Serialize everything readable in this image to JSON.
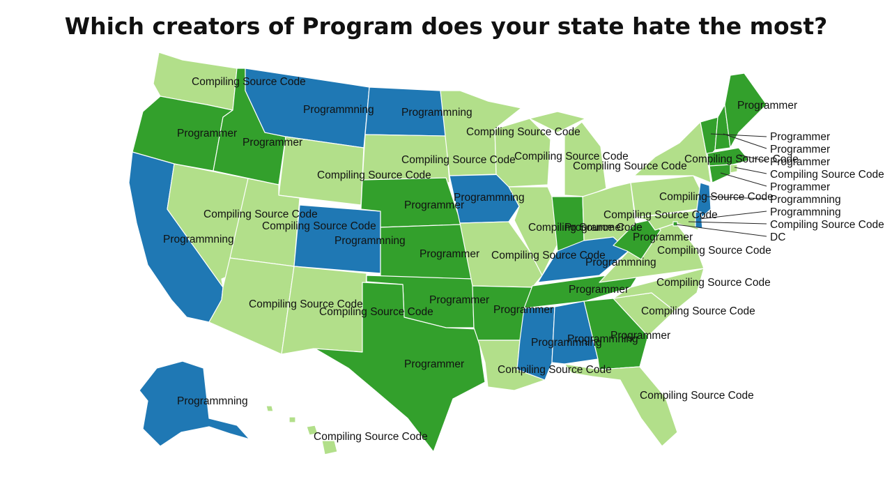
{
  "title": "Which creators of Program does your state hate the most?",
  "colors": {
    "programmer": "#33a02c",
    "compiling": "#b2df8a",
    "programmning": "#1f78b4"
  },
  "states": [
    {
      "name": "washington",
      "label": "Compiling Source Code",
      "category": "compiling"
    },
    {
      "name": "oregon",
      "label": "Programmer",
      "category": "programmer"
    },
    {
      "name": "california",
      "label": "Programmning",
      "category": "programmning"
    },
    {
      "name": "idaho",
      "label": "Programmer",
      "category": "programmer"
    },
    {
      "name": "nevada",
      "label": "Compiling Source Code",
      "category": "compiling"
    },
    {
      "name": "montana",
      "label": "Programmning",
      "category": "programmning"
    },
    {
      "name": "wyoming",
      "label": "Compiling Source Code",
      "category": "compiling"
    },
    {
      "name": "utah",
      "label": "Compiling Source Code",
      "category": "compiling"
    },
    {
      "name": "colorado",
      "label": "Programmning",
      "category": "programmning"
    },
    {
      "name": "arizona",
      "label": "Compiling Source Code",
      "category": "compiling"
    },
    {
      "name": "new-mexico",
      "label": "Compiling Source Code",
      "category": "compiling"
    },
    {
      "name": "north-dakota",
      "label": "Programmning",
      "category": "programmning"
    },
    {
      "name": "south-dakota",
      "label": "Compiling Source Code",
      "category": "compiling"
    },
    {
      "name": "nebraska",
      "label": "Programmer",
      "category": "programmer"
    },
    {
      "name": "kansas",
      "label": "Programmer",
      "category": "programmer"
    },
    {
      "name": "oklahoma",
      "label": "Programmer",
      "category": "programmer"
    },
    {
      "name": "texas",
      "label": "Programmer",
      "category": "programmer"
    },
    {
      "name": "minnesota",
      "label": "Compiling Source Code",
      "category": "compiling"
    },
    {
      "name": "iowa",
      "label": "Programmning",
      "category": "programmning"
    },
    {
      "name": "missouri",
      "label": "Compiling Source Code",
      "category": "compiling"
    },
    {
      "name": "arkansas",
      "label": "Programmer",
      "category": "programmer"
    },
    {
      "name": "louisiana",
      "label": "Compiling Source Code",
      "category": "compiling"
    },
    {
      "name": "wisconsin",
      "label": "Compiling Source Code",
      "category": "compiling"
    },
    {
      "name": "illinois",
      "label": "Compiling Source Code",
      "category": "compiling"
    },
    {
      "name": "michigan",
      "label": "Compiling Source Code",
      "category": "compiling"
    },
    {
      "name": "indiana",
      "label": "Programmer",
      "category": "programmer"
    },
    {
      "name": "ohio",
      "label": "Compiling Source Code",
      "category": "compiling"
    },
    {
      "name": "kentucky",
      "label": "Programmning",
      "category": "programmning"
    },
    {
      "name": "tennessee",
      "label": "Programmer",
      "category": "programmer"
    },
    {
      "name": "mississippi",
      "label": "Programmning",
      "category": "programmning"
    },
    {
      "name": "alabama",
      "label": "Programmning",
      "category": "programmning"
    },
    {
      "name": "georgia",
      "label": "Programmer",
      "category": "programmer"
    },
    {
      "name": "florida",
      "label": "Compiling Source Code",
      "category": "compiling"
    },
    {
      "name": "south-carolina",
      "label": "Compiling Source Code",
      "category": "compiling"
    },
    {
      "name": "north-carolina",
      "label": "Compiling Source Code",
      "category": "compiling"
    },
    {
      "name": "virginia",
      "label": "Compiling Source Code",
      "category": "compiling"
    },
    {
      "name": "west-virginia",
      "label": "Programmer",
      "category": "programmer"
    },
    {
      "name": "pennsylvania",
      "label": "Compiling Source Code",
      "category": "compiling"
    },
    {
      "name": "new-york",
      "label": "Compiling Source Code",
      "category": "compiling"
    },
    {
      "name": "maine",
      "label": "Programmer",
      "category": "programmer"
    },
    {
      "name": "alaska",
      "label": "Programmning",
      "category": "programmning"
    },
    {
      "name": "hawaii",
      "label": "Compiling Source Code",
      "category": "compiling"
    },
    {
      "name": "vermont",
      "label": "Programmer",
      "category": "programmer"
    },
    {
      "name": "new-hampshire",
      "label": "Programmer",
      "category": "programmer"
    },
    {
      "name": "massachusetts",
      "label": "Programmer",
      "category": "programmer"
    },
    {
      "name": "rhode-island",
      "label": "Compiling Source Code",
      "category": "compiling"
    },
    {
      "name": "connecticut",
      "label": "Programmer",
      "category": "programmer"
    },
    {
      "name": "new-jersey",
      "label": "Programmning",
      "category": "programmning"
    },
    {
      "name": "delaware",
      "label": "Programmning",
      "category": "programmning"
    },
    {
      "name": "maryland",
      "label": "Compiling Source Code",
      "category": "compiling"
    },
    {
      "name": "dc",
      "label": "DC",
      "category": "programmer"
    }
  ]
}
